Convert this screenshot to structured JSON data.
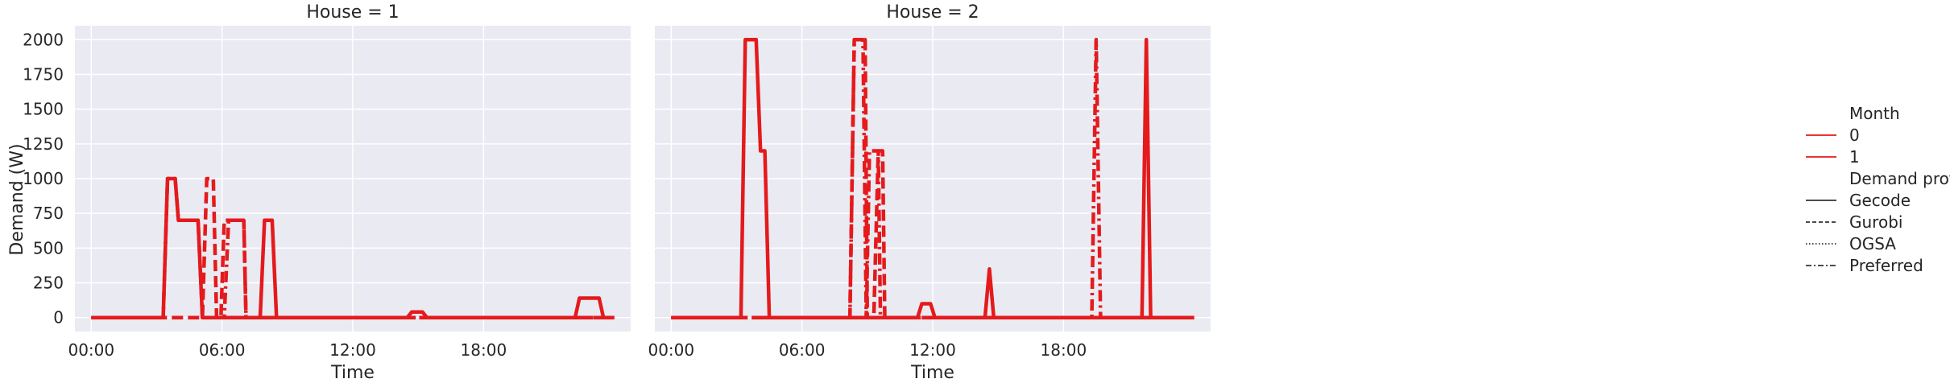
{
  "chart_data": {
    "type": "line",
    "ylabel": "Demand (W)",
    "xlabel": "Time",
    "ylim": [
      -100,
      2100
    ],
    "xlim_hours": [
      -0.75,
      24.75
    ],
    "y_ticks": [
      0,
      250,
      500,
      750,
      1000,
      1250,
      1500,
      1750,
      2000
    ],
    "x_ticks": [
      {
        "hour": 0,
        "label": "00:00"
      },
      {
        "hour": 6,
        "label": "06:00"
      },
      {
        "hour": 12,
        "label": "12:00"
      },
      {
        "hour": 18,
        "label": "18:00"
      }
    ],
    "grid": true,
    "legend_position": "right",
    "color": "#e41a1c",
    "legend": {
      "hue_title": "Month",
      "hue_entries": [
        "0",
        "1"
      ],
      "style_title": "Demand profile",
      "style_entries": [
        {
          "label": "Gecode",
          "dash": "solid"
        },
        {
          "label": "Gurobi",
          "dash": "dashed"
        },
        {
          "label": "OGSA",
          "dash": "dotted"
        },
        {
          "label": "Preferred",
          "dash": "dashdot"
        }
      ]
    },
    "panels": [
      {
        "title": "House = 1",
        "series": [
          {
            "profile": "Gecode",
            "dash": "solid",
            "x": [
              0,
              3.3,
              3.5,
              3.85,
              4.0,
              4.9,
              5.1,
              7.75,
              7.95,
              8.3,
              8.5,
              14.5,
              14.7,
              15.2,
              15.4,
              22.2,
              22.4,
              23.3,
              23.5,
              24.0
            ],
            "y": [
              0,
              0,
              1000,
              1000,
              700,
              700,
              0,
              0,
              700,
              700,
              0,
              0,
              40,
              40,
              0,
              0,
              140,
              140,
              0,
              0
            ]
          },
          {
            "profile": "Gurobi",
            "dash": "dashed",
            "x": [
              0,
              5.1,
              5.3,
              5.6,
              5.75,
              5.95,
              6.1,
              6.3,
              7.0,
              7.1,
              24.0
            ],
            "y": [
              0,
              0,
              1000,
              1000,
              0,
              0,
              700,
              700,
              700,
              0,
              0
            ]
          },
          {
            "profile": "Preferred",
            "dash": "dashdot",
            "x": [
              0,
              3.3,
              3.5,
              3.85,
              4.0,
              4.9,
              5.1,
              6.1,
              6.3,
              7.0,
              7.1,
              24.0
            ],
            "y": [
              0,
              0,
              1000,
              1000,
              700,
              700,
              0,
              0,
              700,
              700,
              0,
              0
            ]
          }
        ]
      },
      {
        "title": "House = 2",
        "series": [
          {
            "profile": "Gecode",
            "dash": "solid",
            "x": [
              0,
              3.2,
              3.4,
              3.9,
              4.1,
              4.3,
              4.5,
              11.3,
              11.5,
              11.9,
              12.1,
              14.4,
              14.6,
              14.8,
              21.6,
              21.8,
              22.0,
              24.0
            ],
            "y": [
              0,
              0,
              2000,
              2000,
              1200,
              1200,
              0,
              0,
              100,
              100,
              0,
              0,
              350,
              0,
              0,
              2000,
              0,
              0
            ]
          },
          {
            "profile": "Gurobi",
            "dash": "dashed",
            "x": [
              0,
              8.2,
              8.4,
              8.9,
              9.0,
              9.3,
              9.5,
              9.7,
              9.8,
              24.0
            ],
            "y": [
              0,
              0,
              2000,
              2000,
              0,
              0,
              1200,
              1200,
              0,
              0
            ]
          },
          {
            "profile": "Preferred",
            "dash": "dashdot",
            "x": [
              0,
              8.2,
              8.4,
              8.8,
              8.95,
              9.1,
              9.3,
              9.5,
              9.6,
              19.3,
              19.5,
              19.7,
              24.0
            ],
            "y": [
              0,
              0,
              2000,
              2000,
              0,
              1200,
              1200,
              1200,
              0,
              0,
              2000,
              0,
              0
            ]
          }
        ]
      }
    ]
  }
}
